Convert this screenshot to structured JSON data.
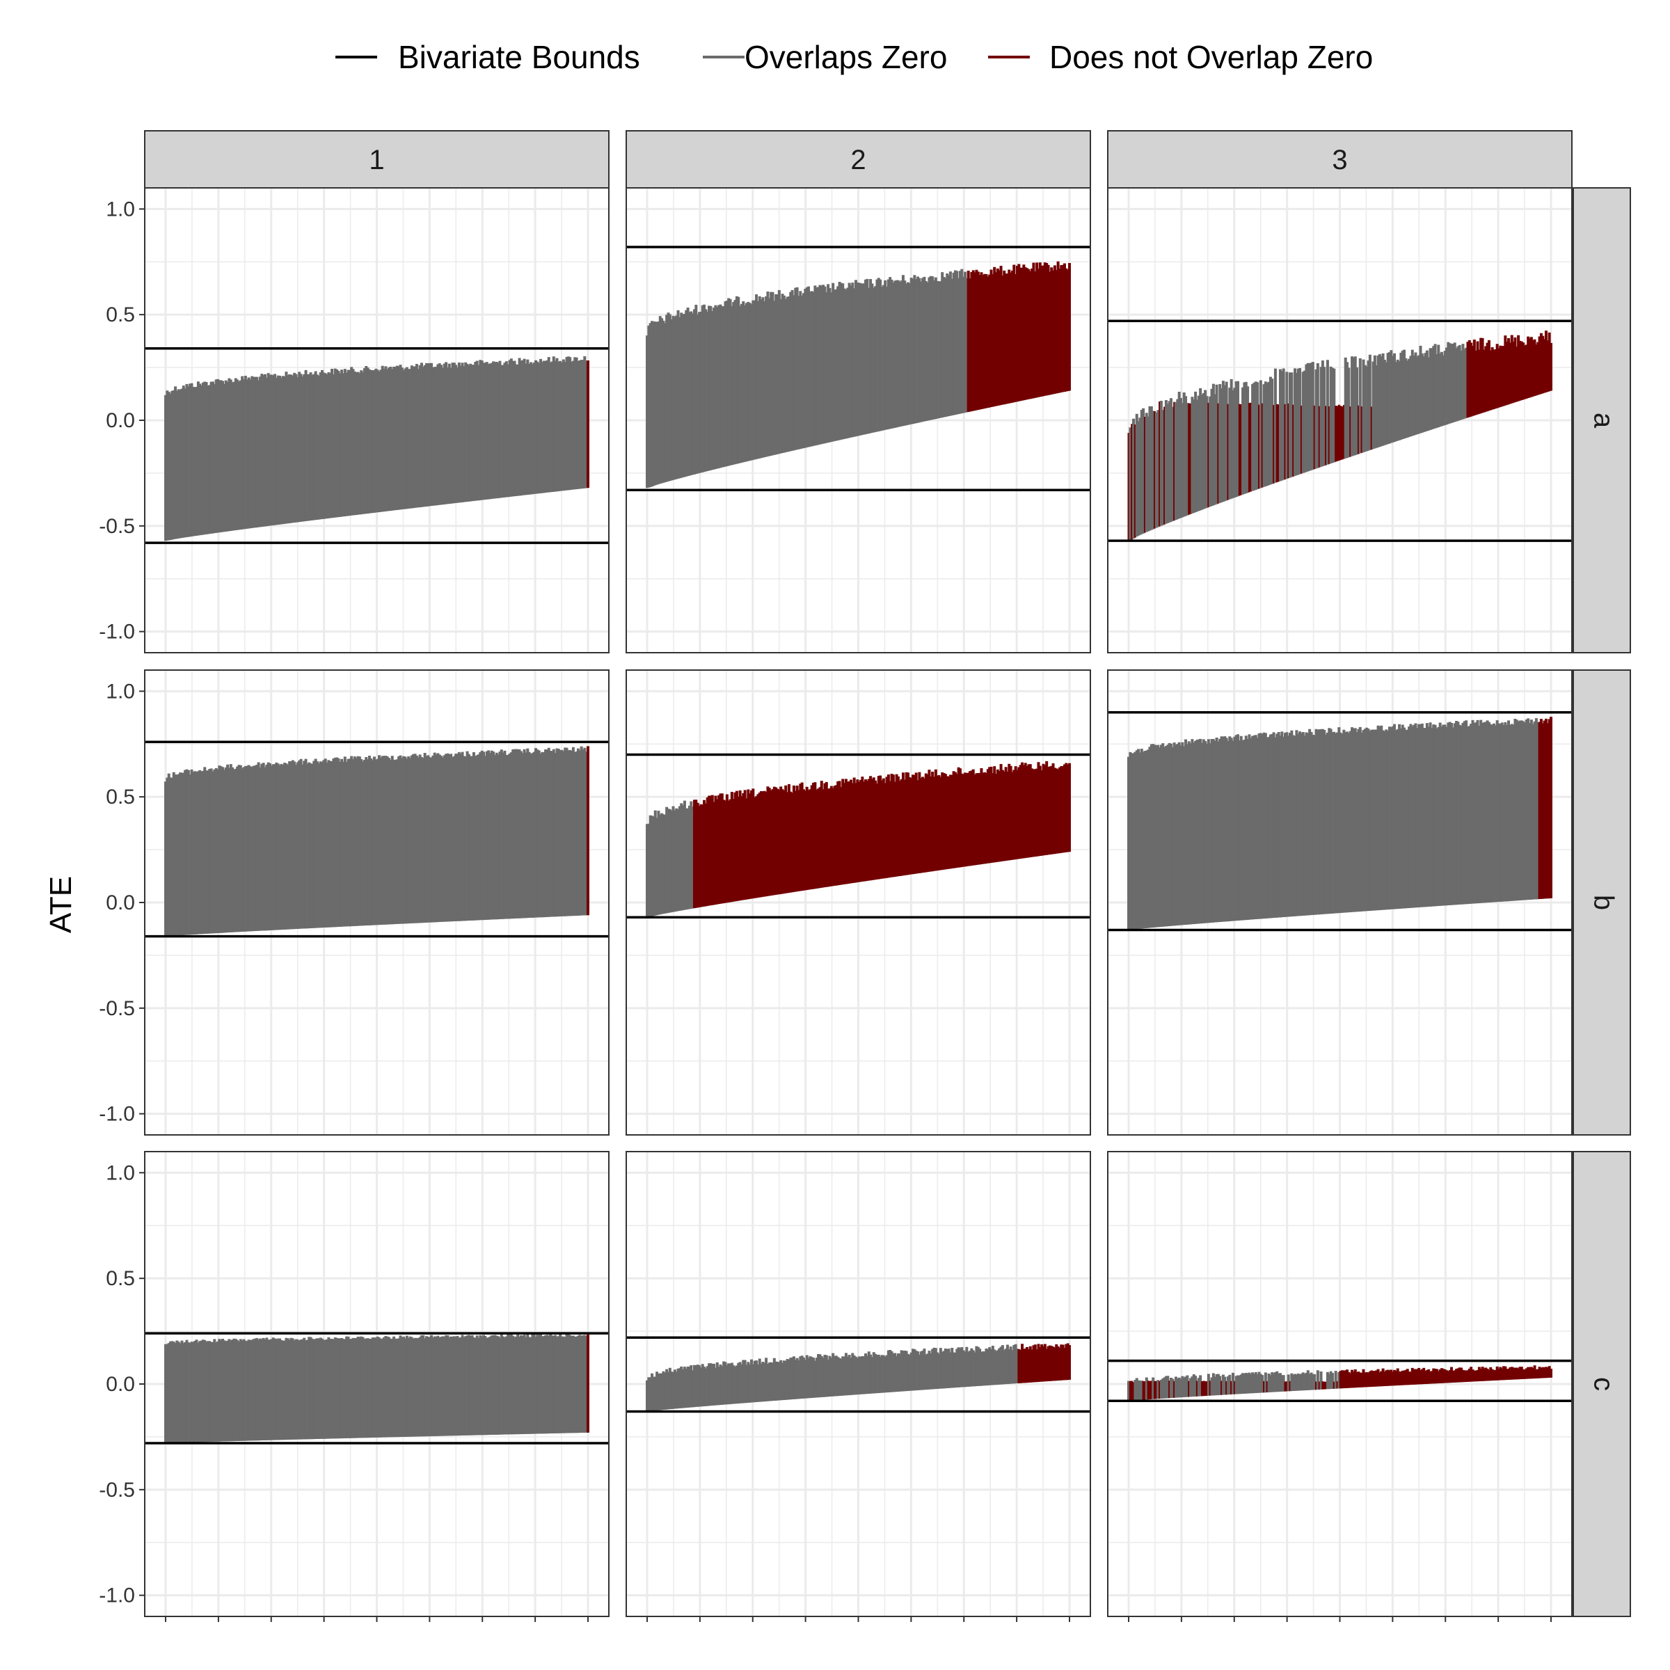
{
  "chart_data": {
    "type": "faceted-interval",
    "ylabel": "ATE",
    "xlabel": "",
    "ylim": [
      -1.1,
      1.1
    ],
    "yticks": [
      -1.0,
      -0.5,
      0.0,
      0.5,
      1.0
    ],
    "ytick_labels": [
      "-1.0",
      "-0.5",
      "0.0",
      "0.5",
      "1.0"
    ],
    "grid": true,
    "legend_position": "top",
    "legend": [
      {
        "key": "bounds",
        "label": "Bivariate Bounds",
        "color": "#000000"
      },
      {
        "key": "overlap",
        "label": "Overlaps Zero",
        "color": "#6b6b6b"
      },
      {
        "key": "nooverlap",
        "label": "Does not Overlap Zero",
        "color": "#730000"
      }
    ],
    "columns": [
      "1",
      "2",
      "3"
    ],
    "rows": [
      "a",
      "b",
      "c"
    ],
    "facets": [
      {
        "row": "a",
        "col": "1",
        "bounds": [
          -0.58,
          0.34
        ],
        "lower": [
          -0.57,
          -0.32
        ],
        "upper": [
          0.14,
          0.31
        ],
        "split": 1.0,
        "noisy": false
      },
      {
        "row": "a",
        "col": "2",
        "bounds": [
          -0.33,
          0.82
        ],
        "lower": [
          -0.32,
          0.14
        ],
        "upper": [
          0.44,
          0.76
        ],
        "split": 0.76,
        "noisy": false
      },
      {
        "row": "a",
        "col": "3",
        "bounds": [
          -0.57,
          0.47
        ],
        "lower": [
          -0.57,
          0.14
        ],
        "upper": [
          -0.02,
          0.43
        ],
        "split": 0.8,
        "noisy": true
      },
      {
        "row": "b",
        "col": "1",
        "bounds": [
          -0.16,
          0.76
        ],
        "lower": [
          -0.16,
          -0.06
        ],
        "upper": [
          0.6,
          0.74
        ],
        "split": 1.0,
        "noisy": false
      },
      {
        "row": "b",
        "col": "2",
        "bounds": [
          -0.07,
          0.7
        ],
        "lower": [
          -0.07,
          0.24
        ],
        "upper": [
          0.4,
          0.68
        ],
        "split": 0.11,
        "noisy": false
      },
      {
        "row": "b",
        "col": "3",
        "bounds": [
          -0.13,
          0.9
        ],
        "lower": [
          -0.13,
          0.02
        ],
        "upper": [
          0.71,
          0.88
        ],
        "split": 0.97,
        "noisy": false
      },
      {
        "row": "c",
        "col": "1",
        "bounds": [
          -0.28,
          0.24
        ],
        "lower": [
          -0.28,
          -0.23
        ],
        "upper": [
          0.2,
          0.24
        ],
        "split": 1.0,
        "noisy": false
      },
      {
        "row": "c",
        "col": "2",
        "bounds": [
          -0.13,
          0.22
        ],
        "lower": [
          -0.13,
          0.02
        ],
        "upper": [
          0.04,
          0.2
        ],
        "split": 0.88,
        "noisy": false
      },
      {
        "row": "c",
        "col": "3",
        "bounds": [
          -0.08,
          0.11
        ],
        "lower": [
          -0.08,
          0.03
        ],
        "upper": [
          0.02,
          0.09
        ],
        "split": 0.5,
        "noisy": true
      }
    ]
  }
}
